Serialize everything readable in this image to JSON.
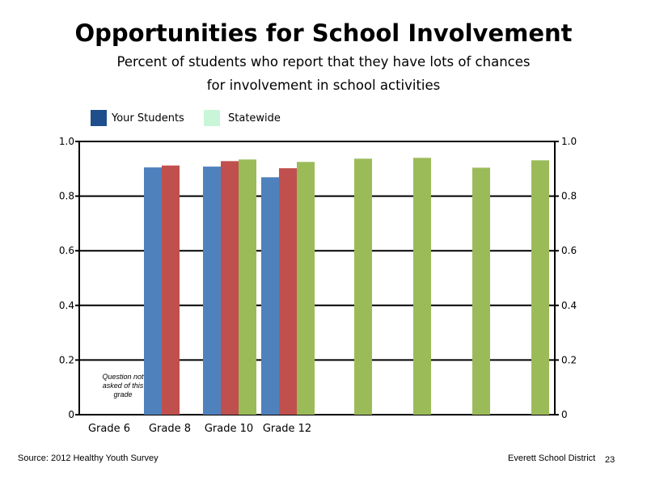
{
  "title": "Opportunities for School Involvement",
  "subtitle_line1": "Percent of students who report that they have lots of chances",
  "subtitle_line2": "for involvement in school activities",
  "legend": [
    {
      "label": "Your Students",
      "color": "#1f4e8c"
    },
    {
      "label": "Statewide",
      "color": "#c9f5d9"
    }
  ],
  "footer": {
    "source": "Source: 2012 Healthy Youth Survey",
    "district": "Everett School District",
    "page_number": "23"
  },
  "chart_data": {
    "type": "bar",
    "ylim": [
      0,
      1.0
    ],
    "yticks": [
      "0",
      "0.2",
      "0.4",
      "0.6",
      "0.8",
      "1.0"
    ],
    "yticks_right": [
      "0",
      "0.2",
      "0.4",
      "0.6",
      "0.8",
      "1.0"
    ],
    "grid": true,
    "categories": [
      "Grade 6",
      "Grade 8",
      "Grade 10",
      "Grade 12"
    ],
    "annotation": "Question not asked of this grade",
    "colors": {
      "blue": "#4f81bd",
      "red": "#c0504d",
      "green": "#9bbb59"
    },
    "bars": [
      {
        "group": 1,
        "slot": 0,
        "color": "blue",
        "value": 0.905
      },
      {
        "group": 1,
        "slot": 1,
        "color": "red",
        "value": 0.912
      },
      {
        "group": 2,
        "slot": 0,
        "color": "blue",
        "value": 0.908
      },
      {
        "group": 2,
        "slot": 1,
        "color": "red",
        "value": 0.928
      },
      {
        "group": 2,
        "slot": 2,
        "color": "green",
        "value": 0.934
      },
      {
        "group": 3,
        "slot": 0,
        "color": "blue",
        "value": 0.869
      },
      {
        "group": 3,
        "slot": 1,
        "color": "red",
        "value": 0.902
      },
      {
        "group": 3,
        "slot": 2,
        "color": "green",
        "value": 0.925
      },
      {
        "group": 4,
        "slot": 0,
        "color": "green",
        "value": 0.937
      },
      {
        "group": 5,
        "slot": 0,
        "color": "green",
        "value": 0.94
      },
      {
        "group": 6,
        "slot": 0,
        "color": "green",
        "value": 0.904
      },
      {
        "group": 7,
        "slot": 0,
        "color": "green",
        "value": 0.931
      }
    ]
  }
}
